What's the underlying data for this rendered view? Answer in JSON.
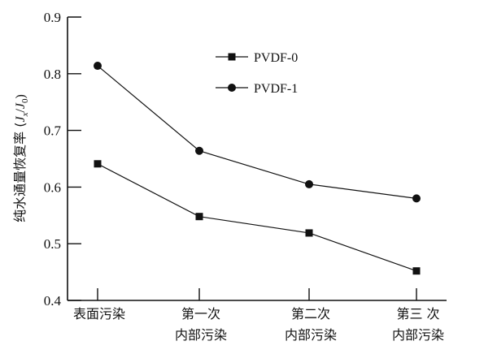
{
  "chart_data": {
    "type": "line",
    "title": "",
    "xlabel": "",
    "ylabel": "纯水通量恢复率 (J_x/J_0)",
    "ylabel_parts": {
      "main": "纯水通量恢复率 (",
      "J": "J",
      "x": "x",
      "slash": "/",
      "J2": "J",
      "zero": "0",
      "close": ")"
    },
    "ylim": [
      0.4,
      0.9
    ],
    "yticks": [
      "0.4",
      "0.5",
      "0.6",
      "0.7",
      "0.8",
      "0.9"
    ],
    "categories": [
      [
        "表面污染"
      ],
      [
        "第一次",
        "内部污染"
      ],
      [
        "第二次",
        "内部污染"
      ],
      [
        "第三 次",
        "内部污染"
      ]
    ],
    "series": [
      {
        "name": "PVDF-0",
        "marker": "square",
        "values": [
          0.641,
          0.548,
          0.519,
          0.452
        ]
      },
      {
        "name": "PVDF-1",
        "marker": "circle",
        "values": [
          0.814,
          0.664,
          0.605,
          0.58
        ]
      }
    ],
    "legend": "top-center",
    "grid": false,
    "color": "#111111"
  }
}
